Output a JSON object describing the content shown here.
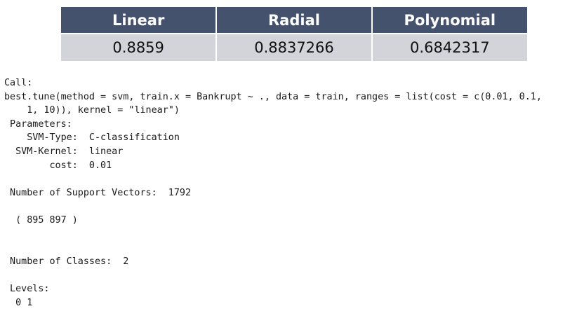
{
  "table": {
    "headers": [
      "Linear",
      "Radial",
      "Polynomial"
    ],
    "values": [
      "0.8859",
      "0.8837266",
      "0.6842317"
    ]
  },
  "console_lines": [
    "Call:",
    "best.tune(method = svm, train.x = Bankrupt ~ ., data = train, ranges = list(cost = c(0.01, 0.1,",
    "    1, 10)), kernel = \"linear\")",
    " Parameters:",
    "    SVM-Type:  C-classification",
    "  SVM-Kernel:  linear",
    "        cost:  0.01",
    "",
    " Number of Support Vectors:  1792",
    "",
    "  ( 895 897 )",
    "",
    "",
    " Number of Classes:  2",
    "",
    " Levels:",
    "  0 1"
  ]
}
